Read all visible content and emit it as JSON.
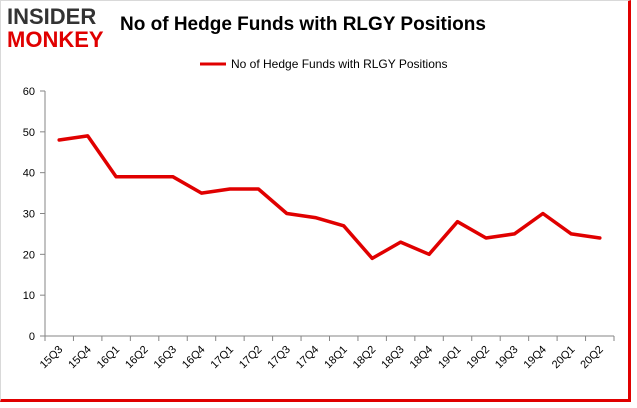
{
  "logo": {
    "line1": "INSIDER",
    "line2": "MONKEY"
  },
  "chart_data": {
    "type": "line",
    "title": "No of Hedge Funds with RLGY Positions",
    "categories": [
      "15Q3",
      "15Q4",
      "16Q1",
      "16Q2",
      "16Q3",
      "16Q4",
      "17Q1",
      "17Q2",
      "17Q3",
      "17Q4",
      "18Q1",
      "18Q2",
      "18Q3",
      "18Q4",
      "19Q1",
      "19Q2",
      "19Q3",
      "19Q4",
      "20Q1",
      "20Q2"
    ],
    "series": [
      {
        "name": "No of Hedge Funds with RLGY Positions",
        "values": [
          48,
          49,
          39,
          39,
          39,
          35,
          36,
          36,
          30,
          29,
          27,
          19,
          23,
          20,
          28,
          24,
          25,
          30,
          25,
          24
        ]
      }
    ],
    "ylim": [
      0,
      60
    ],
    "yticks": [
      0,
      10,
      20,
      30,
      40,
      50,
      60
    ],
    "xlabel": "",
    "ylabel": "",
    "grid": false,
    "legend": "top-center",
    "line_color": "#e00000"
  }
}
